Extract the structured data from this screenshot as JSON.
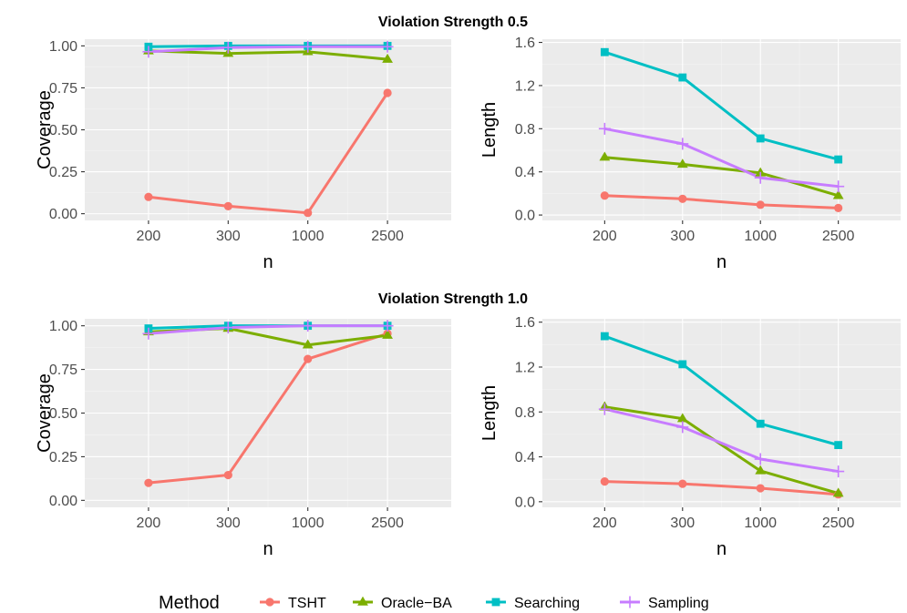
{
  "row_titles": [
    "Violation Strength 0.5",
    "Violation Strength 1.0"
  ],
  "legend": {
    "title": "Method",
    "items": [
      "TSHT",
      "Oracle−BA",
      "Searching",
      "Sampling"
    ]
  },
  "colors": {
    "TSHT": "#F8766D",
    "Oracle-BA": "#7CAE00",
    "Searching": "#00BFC4",
    "Sampling": "#C77CFF"
  },
  "chart_data": [
    {
      "type": "line",
      "row_title": "Violation Strength 0.5",
      "categories": [
        "200",
        "300",
        "1000",
        "2500"
      ],
      "xlabel": "n",
      "ylabel": "Coverage",
      "ylim": [
        -0.04,
        1.04
      ],
      "yticks": [
        "0.00",
        "0.25",
        "0.50",
        "0.75",
        "1.00"
      ],
      "grid": true,
      "series": [
        {
          "name": "TSHT",
          "values": [
            0.1,
            0.045,
            0.005,
            0.72
          ]
        },
        {
          "name": "Oracle−BA",
          "values": [
            0.97,
            0.955,
            0.965,
            0.92
          ]
        },
        {
          "name": "Searching",
          "values": [
            0.995,
            1.0,
            1.0,
            1.0
          ]
        },
        {
          "name": "Sampling",
          "values": [
            0.965,
            0.99,
            0.995,
            0.995
          ]
        }
      ]
    },
    {
      "type": "line",
      "row_title": "Violation Strength 0.5",
      "categories": [
        "200",
        "300",
        "1000",
        "2500"
      ],
      "xlabel": "n",
      "ylabel": "Length",
      "ylim": [
        -0.05,
        1.63
      ],
      "yticks": [
        "0.0",
        "0.4",
        "0.8",
        "1.2",
        "1.6"
      ],
      "grid": true,
      "series": [
        {
          "name": "TSHT",
          "values": [
            0.18,
            0.15,
            0.095,
            0.065
          ]
        },
        {
          "name": "Oracle−BA",
          "values": [
            0.535,
            0.47,
            0.39,
            0.18
          ]
        },
        {
          "name": "Searching",
          "values": [
            1.51,
            1.275,
            0.71,
            0.515
          ]
        },
        {
          "name": "Sampling",
          "values": [
            0.8,
            0.66,
            0.345,
            0.265
          ]
        }
      ]
    },
    {
      "type": "line",
      "row_title": "Violation Strength 1.0",
      "categories": [
        "200",
        "300",
        "1000",
        "2500"
      ],
      "xlabel": "n",
      "ylabel": "Coverage",
      "ylim": [
        -0.04,
        1.04
      ],
      "yticks": [
        "0.00",
        "0.25",
        "0.50",
        "0.75",
        "1.00"
      ],
      "grid": true,
      "series": [
        {
          "name": "TSHT",
          "values": [
            0.1,
            0.145,
            0.81,
            0.955
          ]
        },
        {
          "name": "Oracle−BA",
          "values": [
            0.965,
            0.985,
            0.89,
            0.945
          ]
        },
        {
          "name": "Searching",
          "values": [
            0.985,
            1.0,
            1.0,
            1.0
          ]
        },
        {
          "name": "Sampling",
          "values": [
            0.955,
            0.99,
            1.0,
            1.0
          ]
        }
      ]
    },
    {
      "type": "line",
      "row_title": "Violation Strength 1.0",
      "categories": [
        "200",
        "300",
        "1000",
        "2500"
      ],
      "xlabel": "n",
      "ylabel": "Length",
      "ylim": [
        -0.05,
        1.63
      ],
      "yticks": [
        "0.0",
        "0.4",
        "0.8",
        "1.2",
        "1.6"
      ],
      "grid": true,
      "series": [
        {
          "name": "TSHT",
          "values": [
            0.18,
            0.16,
            0.12,
            0.065
          ]
        },
        {
          "name": "Oracle−BA",
          "values": [
            0.845,
            0.74,
            0.275,
            0.075
          ]
        },
        {
          "name": "Searching",
          "values": [
            1.475,
            1.225,
            0.695,
            0.505
          ]
        },
        {
          "name": "Sampling",
          "values": [
            0.825,
            0.665,
            0.38,
            0.27
          ]
        }
      ]
    }
  ]
}
